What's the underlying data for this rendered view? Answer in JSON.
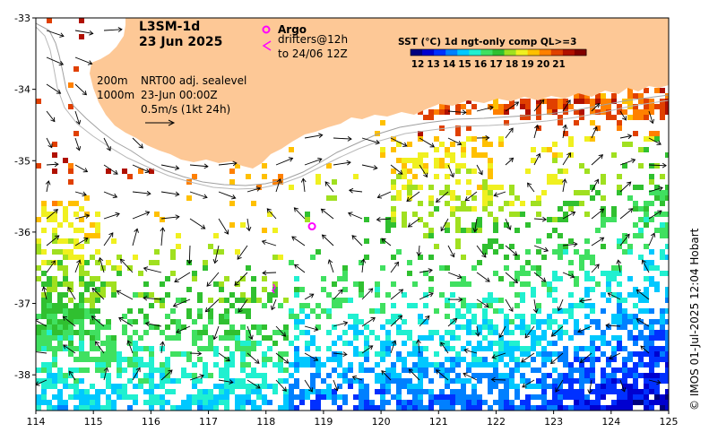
{
  "product": {
    "name": "L3SM-1d",
    "date": "23 Jun 2025"
  },
  "legend": {
    "argo_label": "Argo",
    "argo_color": "#ff00ff",
    "drifters_label_1": "drifters@12h",
    "drifters_label_2": "to 24/06 12Z",
    "contour_200": "200m",
    "contour_1000": "1000m",
    "sealevel_label": "NRT00 adj. sealevel",
    "sealevel_time": "23-Jun 00:00Z",
    "velocity_scale": "0.5m/s (1kt 24h)"
  },
  "colorbar": {
    "title": "SST (°C) 1d ngt-only comp QL>=3",
    "ticks": [
      "12",
      "13",
      "14",
      "15",
      "16",
      "17",
      "18",
      "19",
      "20",
      "21"
    ],
    "colors": [
      "#00007f",
      "#0000d0",
      "#0030ff",
      "#0080ff",
      "#00c8ff",
      "#20f0d0",
      "#40e060",
      "#30c030",
      "#a0e020",
      "#f0f020",
      "#ffc000",
      "#ff8000",
      "#e04000",
      "#b01000",
      "#800000"
    ]
  },
  "map": {
    "lon_range": [
      114,
      125
    ],
    "lat_range": [
      -38.5,
      -33
    ],
    "lon_ticks": [
      "114",
      "115",
      "116",
      "117",
      "118",
      "119",
      "120",
      "121",
      "122",
      "123",
      "124",
      "125"
    ],
    "lat_ticks": [
      "-33",
      "-34",
      "-35",
      "-36",
      "-37",
      "-38"
    ],
    "land_color": "#fdc896"
  },
  "argo_floats": [
    {
      "lon": 118.8,
      "lat": -35.92
    }
  ],
  "credit": "© IMOS 01-Jul-2025 12:04 Hobart"
}
